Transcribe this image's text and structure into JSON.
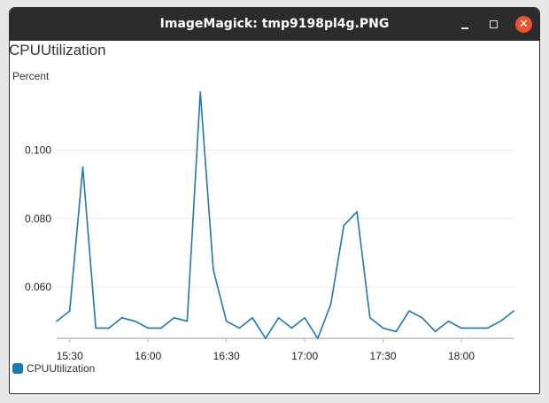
{
  "window": {
    "title": "ImageMagick: tmp9198pl4g.PNG"
  },
  "chart_data": {
    "type": "line",
    "title": "CPUUtilization",
    "ylabel": "Percent",
    "xlabel": "",
    "x_unit": "time",
    "ylim": [
      0.045,
      0.118
    ],
    "x_tick_labels": [
      "15:30",
      "16:00",
      "16:30",
      "17:00",
      "17:30",
      "18:00"
    ],
    "x_tick_minutes": [
      930,
      960,
      990,
      1020,
      1050,
      1080
    ],
    "y_ticks": [
      0.06,
      0.08,
      0.1
    ],
    "y_tick_labels": [
      "0.060",
      "0.080",
      "0.100"
    ],
    "grid": true,
    "legend": "bottom-left",
    "series": [
      {
        "name": "CPUUtilization",
        "color": "#1f77b4",
        "x": [
          "15:25",
          "15:30",
          "15:35",
          "15:40",
          "15:45",
          "15:50",
          "15:55",
          "16:00",
          "16:05",
          "16:10",
          "16:15",
          "16:20",
          "16:25",
          "16:30",
          "16:35",
          "16:40",
          "16:45",
          "16:50",
          "16:55",
          "17:00",
          "17:05",
          "17:10",
          "17:15",
          "17:20",
          "17:25",
          "17:30",
          "17:35",
          "17:40",
          "17:45",
          "17:50",
          "17:55",
          "18:00",
          "18:05",
          "18:10",
          "18:15",
          "18:20"
        ],
        "values": [
          0.05,
          0.053,
          0.095,
          0.048,
          0.048,
          0.051,
          0.05,
          0.048,
          0.048,
          0.051,
          0.05,
          0.117,
          0.065,
          0.05,
          0.048,
          0.051,
          0.045,
          0.051,
          0.048,
          0.051,
          0.045,
          0.055,
          0.078,
          0.082,
          0.051,
          0.048,
          0.047,
          0.053,
          0.051,
          0.047,
          0.05,
          0.048,
          0.048,
          0.048,
          0.05,
          0.053
        ]
      }
    ]
  }
}
